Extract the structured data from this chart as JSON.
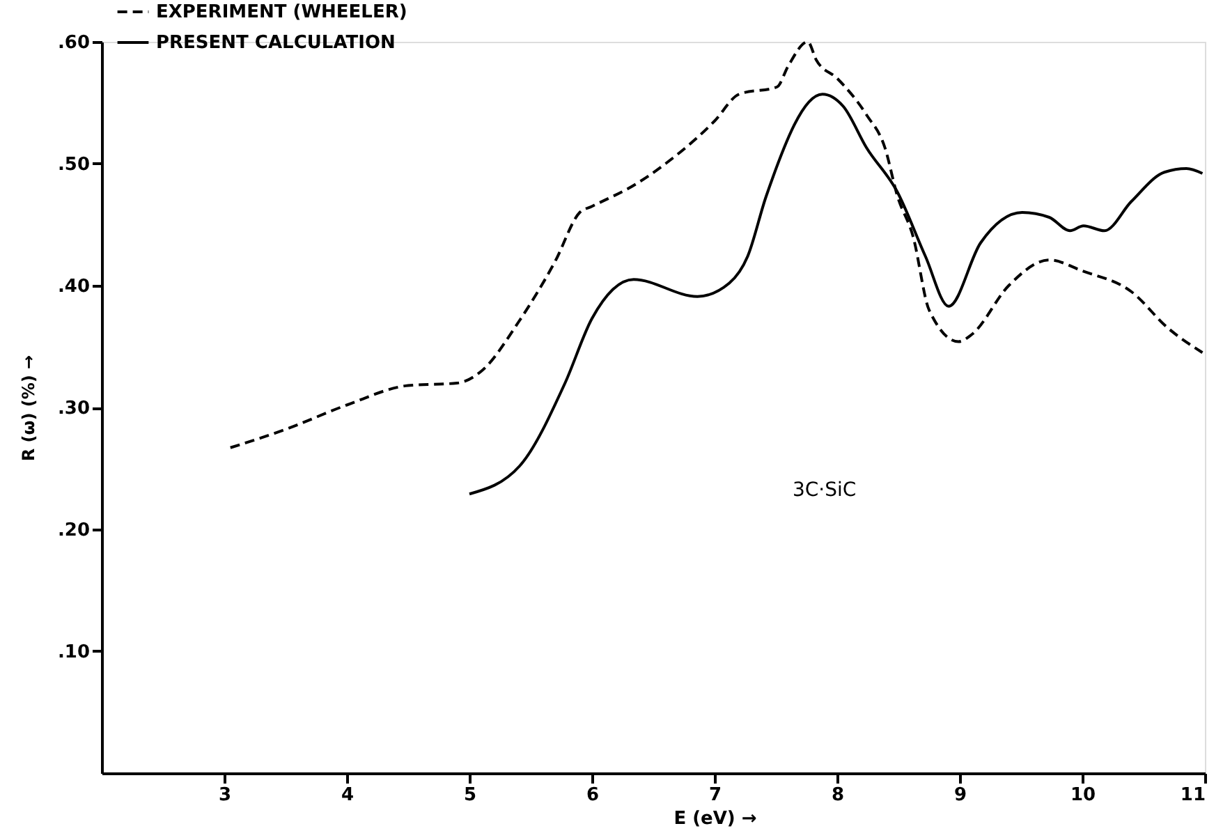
{
  "chart_data": {
    "type": "line",
    "xlabel": "E (eV) →",
    "ylabel": "R (ω) (%) →",
    "annotations": [
      "3C·SiC"
    ],
    "xlim": [
      2,
      11
    ],
    "ylim": [
      0,
      0.6
    ],
    "xticks": [
      3,
      4,
      5,
      6,
      7,
      8,
      9,
      10,
      11
    ],
    "yticks": [
      {
        "value": 0.1,
        "label": ".10"
      },
      {
        "value": 0.2,
        "label": ".20"
      },
      {
        "value": 0.3,
        "label": ".30"
      },
      {
        "value": 0.4,
        "label": ".40"
      },
      {
        "value": 0.5,
        "label": ".50"
      },
      {
        "value": 0.6,
        "label": ".60"
      }
    ],
    "grid": false,
    "legend": "top left",
    "marker": "none",
    "series": [
      {
        "name": "EXPERIMENT (WHEELER)",
        "color": "#000000",
        "line_style": "dashed",
        "x": [
          3.05,
          3.5,
          4.0,
          4.5,
          4.9,
          5.1,
          5.4,
          5.7,
          5.9,
          6.0,
          6.37,
          6.6,
          7.0,
          7.2,
          7.51,
          7.6,
          7.76,
          7.83,
          8.0,
          8.24,
          8.39,
          8.49,
          8.62,
          8.75,
          8.99,
          9.1,
          9.4,
          9.73,
          10.0,
          10.4,
          10.7,
          10.98
        ],
        "values": [
          0.267,
          0.282,
          0.302,
          0.318,
          0.32,
          0.33,
          0.37,
          0.42,
          0.46,
          0.465,
          0.484,
          0.5,
          0.535,
          0.557,
          0.563,
          0.58,
          0.6,
          0.585,
          0.57,
          0.54,
          0.513,
          0.474,
          0.44,
          0.38,
          0.354,
          0.36,
          0.4,
          0.421,
          0.412,
          0.395,
          0.365,
          0.345
        ]
      },
      {
        "name": "PRESENT CALCULATION",
        "color": "#000000",
        "line_style": "solid",
        "x": [
          5.0,
          5.41,
          5.78,
          6.0,
          6.34,
          6.86,
          7.12,
          7.27,
          7.42,
          7.88,
          8.05,
          8.24,
          8.49,
          8.72,
          8.91,
          9.17,
          9.51,
          9.73,
          9.9,
          10.01,
          10.18,
          10.4,
          10.67,
          10.85,
          10.98
        ],
        "values": [
          0.229,
          0.252,
          0.32,
          0.373,
          0.405,
          0.391,
          0.402,
          0.424,
          0.473,
          0.557,
          0.547,
          0.513,
          0.477,
          0.424,
          0.383,
          0.435,
          0.46,
          0.456,
          0.445,
          0.449,
          0.445,
          0.469,
          0.493,
          0.496,
          0.492
        ]
      }
    ]
  }
}
